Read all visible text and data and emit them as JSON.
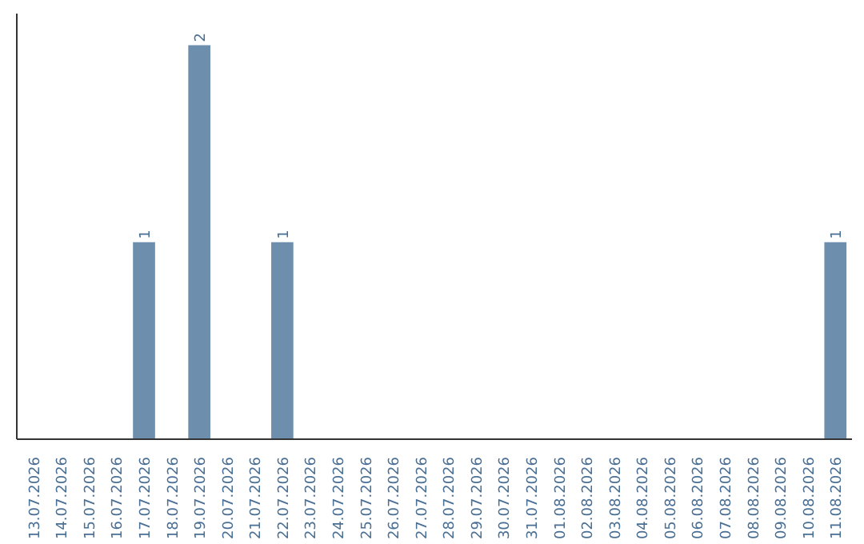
{
  "chart_data": {
    "type": "bar",
    "categories": [
      "13.07.2026",
      "14.07.2026",
      "15.07.2026",
      "16.07.2026",
      "17.07.2026",
      "18.07.2026",
      "19.07.2026",
      "20.07.2026",
      "21.07.2026",
      "22.07.2026",
      "23.07.2026",
      "24.07.2026",
      "25.07.2026",
      "26.07.2026",
      "27.07.2026",
      "28.07.2026",
      "29.07.2026",
      "30.07.2026",
      "31.07.2026",
      "01.08.2026",
      "02.08.2026",
      "03.08.2026",
      "04.08.2026",
      "05.08.2026",
      "06.08.2026",
      "07.08.2026",
      "08.08.2026",
      "09.08.2026",
      "10.08.2026",
      "11.08.2026"
    ],
    "values": [
      0,
      0,
      0,
      0,
      1,
      0,
      2,
      0,
      0,
      1,
      0,
      0,
      0,
      0,
      0,
      0,
      0,
      0,
      0,
      0,
      0,
      0,
      0,
      0,
      0,
      0,
      0,
      0,
      0,
      1
    ],
    "value_labels": [
      null,
      null,
      null,
      null,
      "1",
      null,
      "2",
      null,
      null,
      "1",
      null,
      null,
      null,
      null,
      null,
      null,
      null,
      null,
      null,
      null,
      null,
      null,
      null,
      null,
      null,
      null,
      null,
      null,
      null,
      "1"
    ],
    "color": "#6d8fad",
    "grid": false,
    "tick_labels": "x"
  }
}
